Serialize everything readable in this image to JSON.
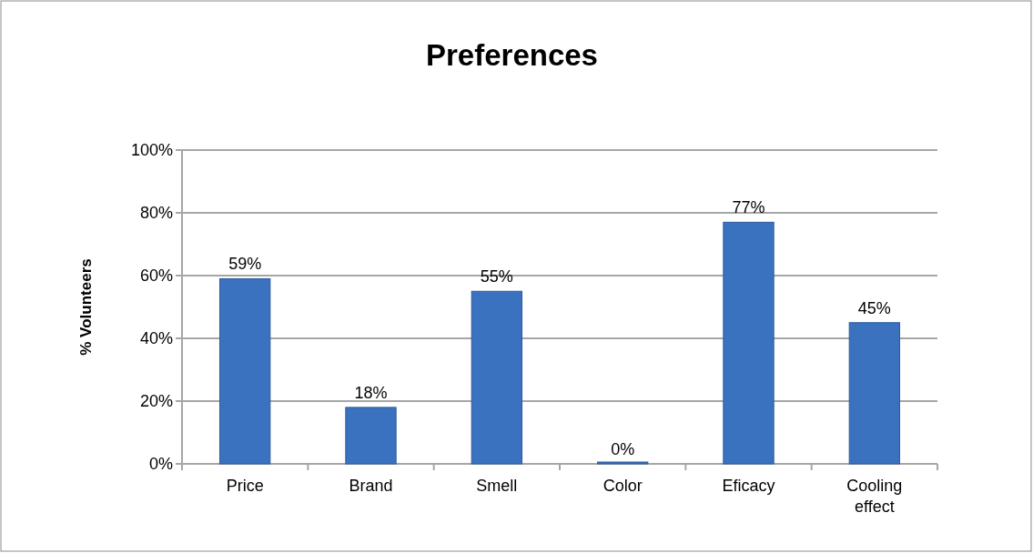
{
  "chart_data": {
    "type": "bar",
    "title": "Preferences",
    "ylabel": "% Volunteers",
    "categories": [
      "Price",
      "Brand",
      "Smell",
      "Color",
      "Eficacy",
      "Cooling effect"
    ],
    "values": [
      59,
      18,
      55,
      0,
      77,
      45
    ],
    "color": "#3a72c0",
    "value_labels": [
      "59%",
      "18%",
      "55%",
      "0%",
      "77%",
      "45%"
    ],
    "ylim": [
      0,
      100
    ],
    "yticks": [
      {
        "value": 0,
        "label": "0%"
      },
      {
        "value": 20,
        "label": "20%"
      },
      {
        "value": 40,
        "label": "40%"
      },
      {
        "value": 60,
        "label": "60%"
      },
      {
        "value": 80,
        "label": "80%"
      },
      {
        "value": 100,
        "label": "100%"
      }
    ],
    "grid": "y"
  }
}
